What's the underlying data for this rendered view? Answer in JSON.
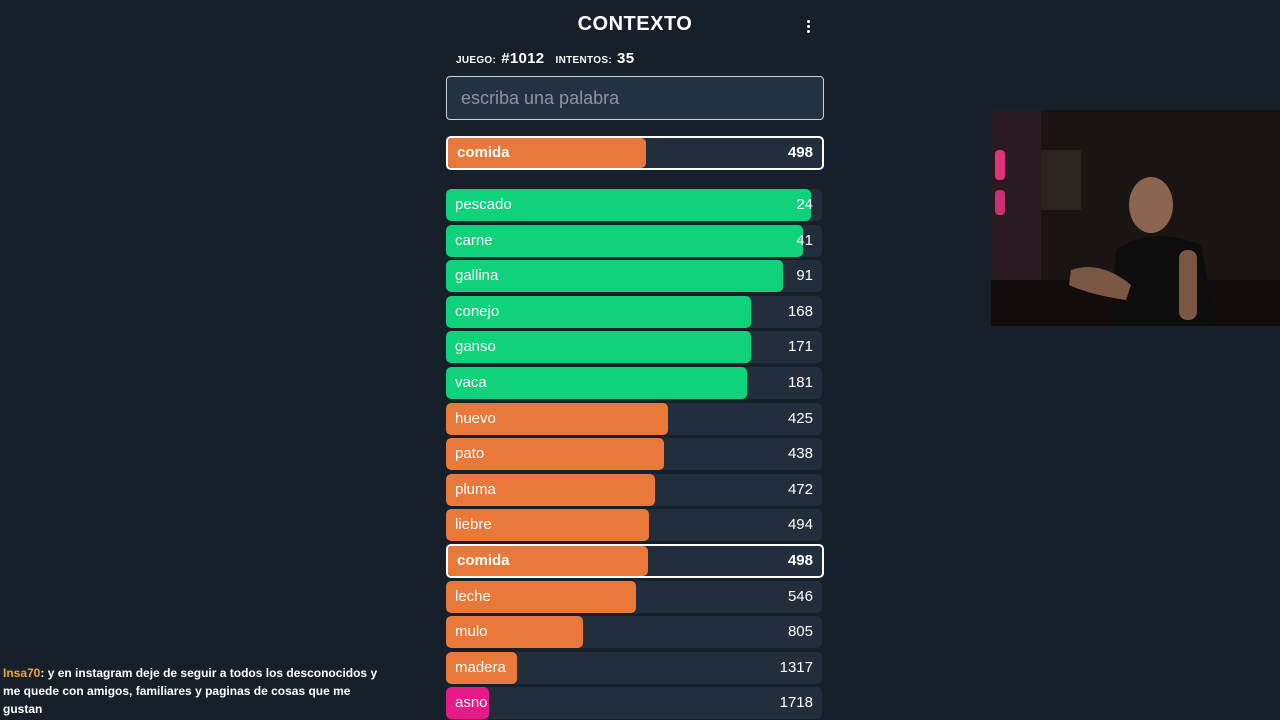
{
  "header": {
    "title": "CONTEXTO"
  },
  "stats": {
    "game_label": "JUEGO:",
    "game_value": "#1012",
    "attempts_label": "INTENTOS:",
    "attempts_value": "35"
  },
  "input": {
    "placeholder": "escriba una palabra",
    "value": ""
  },
  "colors": {
    "green": "#10d27a",
    "orange": "#e8793a",
    "pink": "#e8198b",
    "track": "#222e3b",
    "background": "#15202b"
  },
  "current_guess": {
    "word": "comida",
    "rank": "498",
    "fill_fraction": 0.53,
    "color": "orange"
  },
  "guesses": [
    {
      "word": "pescado",
      "rank": "24",
      "fill_fraction": 0.97,
      "color": "green"
    },
    {
      "word": "carne",
      "rank": "41",
      "fill_fraction": 0.95,
      "color": "green"
    },
    {
      "word": "gallina",
      "rank": "91",
      "fill_fraction": 0.895,
      "color": "green"
    },
    {
      "word": "conejo",
      "rank": "168",
      "fill_fraction": 0.81,
      "color": "green"
    },
    {
      "word": "ganso",
      "rank": "171",
      "fill_fraction": 0.81,
      "color": "green"
    },
    {
      "word": "vaca",
      "rank": "181",
      "fill_fraction": 0.8,
      "color": "green"
    },
    {
      "word": "huevo",
      "rank": "425",
      "fill_fraction": 0.59,
      "color": "orange"
    },
    {
      "word": "pato",
      "rank": "438",
      "fill_fraction": 0.58,
      "color": "orange"
    },
    {
      "word": "pluma",
      "rank": "472",
      "fill_fraction": 0.555,
      "color": "orange"
    },
    {
      "word": "liebre",
      "rank": "494",
      "fill_fraction": 0.54,
      "color": "orange"
    },
    {
      "word": "comida",
      "rank": "498",
      "fill_fraction": 0.535,
      "color": "orange",
      "current": true
    },
    {
      "word": "leche",
      "rank": "546",
      "fill_fraction": 0.505,
      "color": "orange"
    },
    {
      "word": "mulo",
      "rank": "805",
      "fill_fraction": 0.365,
      "color": "orange"
    },
    {
      "word": "madera",
      "rank": "1317",
      "fill_fraction": 0.19,
      "color": "orange"
    },
    {
      "word": "asno",
      "rank": "1718",
      "fill_fraction": 0.115,
      "color": "pink"
    }
  ],
  "chat": {
    "username": "Insa70",
    "message": ": y en instagram deje de seguir a todos los desconocidos y me quede con amigos, familiares y paginas de cosas que me gustan"
  }
}
